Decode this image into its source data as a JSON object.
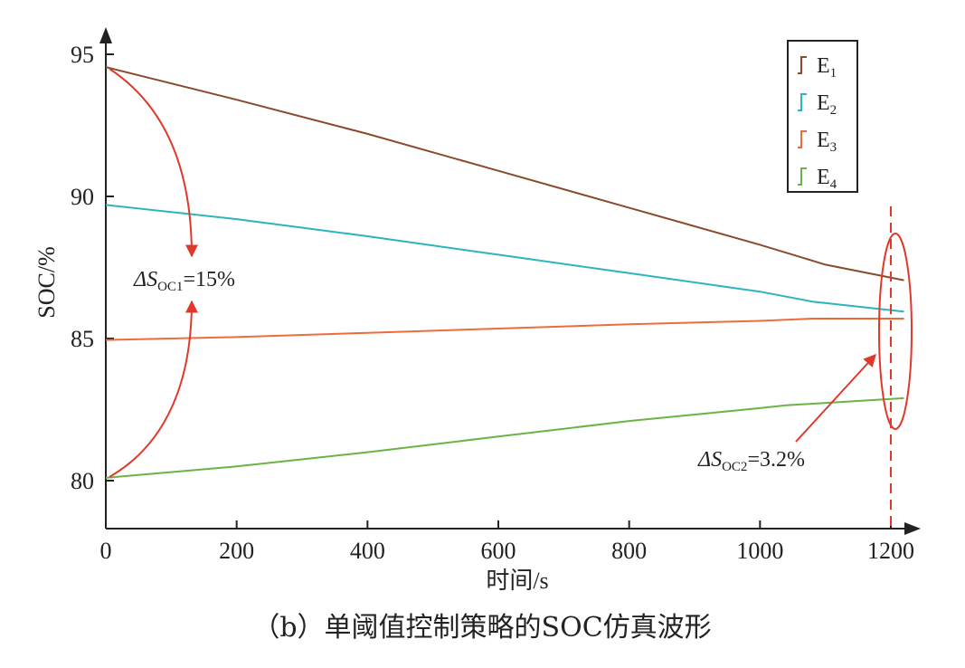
{
  "chart_data": {
    "type": "line",
    "xlabel": "时间/s",
    "ylabel": "SOC/%",
    "caption": "（b）单阈值控制策略的SOC仿真波形",
    "xlim": [
      0,
      1230
    ],
    "ylim": [
      78.3,
      96.5
    ],
    "xticks": [
      "0",
      "200",
      "400",
      "600",
      "800",
      "1000",
      "1200"
    ],
    "xtick_values": [
      0,
      200,
      400,
      600,
      800,
      1000,
      1200
    ],
    "yticks": [
      "80",
      "85",
      "90",
      "95"
    ],
    "ytick_values": [
      80,
      85,
      90,
      95
    ],
    "grid": false,
    "legend_position": "top-right",
    "series": [
      {
        "name": "E",
        "sub": "1",
        "color": "#8B4A2B",
        "x": [
          0,
          200,
          400,
          600,
          800,
          1000,
          1100,
          1220
        ],
        "y": [
          94.55,
          93.4,
          92.2,
          90.9,
          89.6,
          88.3,
          87.6,
          87.05
        ]
      },
      {
        "name": "E",
        "sub": "2",
        "color": "#2BB5BE",
        "x": [
          0,
          200,
          400,
          600,
          800,
          1000,
          1080,
          1220
        ],
        "y": [
          89.7,
          89.2,
          88.6,
          87.95,
          87.3,
          86.65,
          86.3,
          85.95
        ]
      },
      {
        "name": "E",
        "sub": "3",
        "color": "#EE6C3A",
        "x": [
          0,
          200,
          400,
          600,
          800,
          1000,
          1080,
          1220
        ],
        "y": [
          84.95,
          85.05,
          85.2,
          85.35,
          85.5,
          85.62,
          85.7,
          85.7
        ]
      },
      {
        "name": "E",
        "sub": "4",
        "color": "#6AB446",
        "x": [
          0,
          200,
          400,
          600,
          800,
          1000,
          1040,
          1220
        ],
        "y": [
          80.1,
          80.5,
          81.0,
          81.55,
          82.1,
          82.55,
          82.65,
          82.9
        ]
      }
    ],
    "annotations": [
      {
        "label_main": "ΔS",
        "label_sub": "OC1",
        "label_tail": "=15%"
      },
      {
        "label_main": "ΔS",
        "label_sub": "OC2",
        "label_tail": "=3.2%"
      }
    ],
    "marker_x": 1200,
    "annotation_color": "#E0392B"
  }
}
